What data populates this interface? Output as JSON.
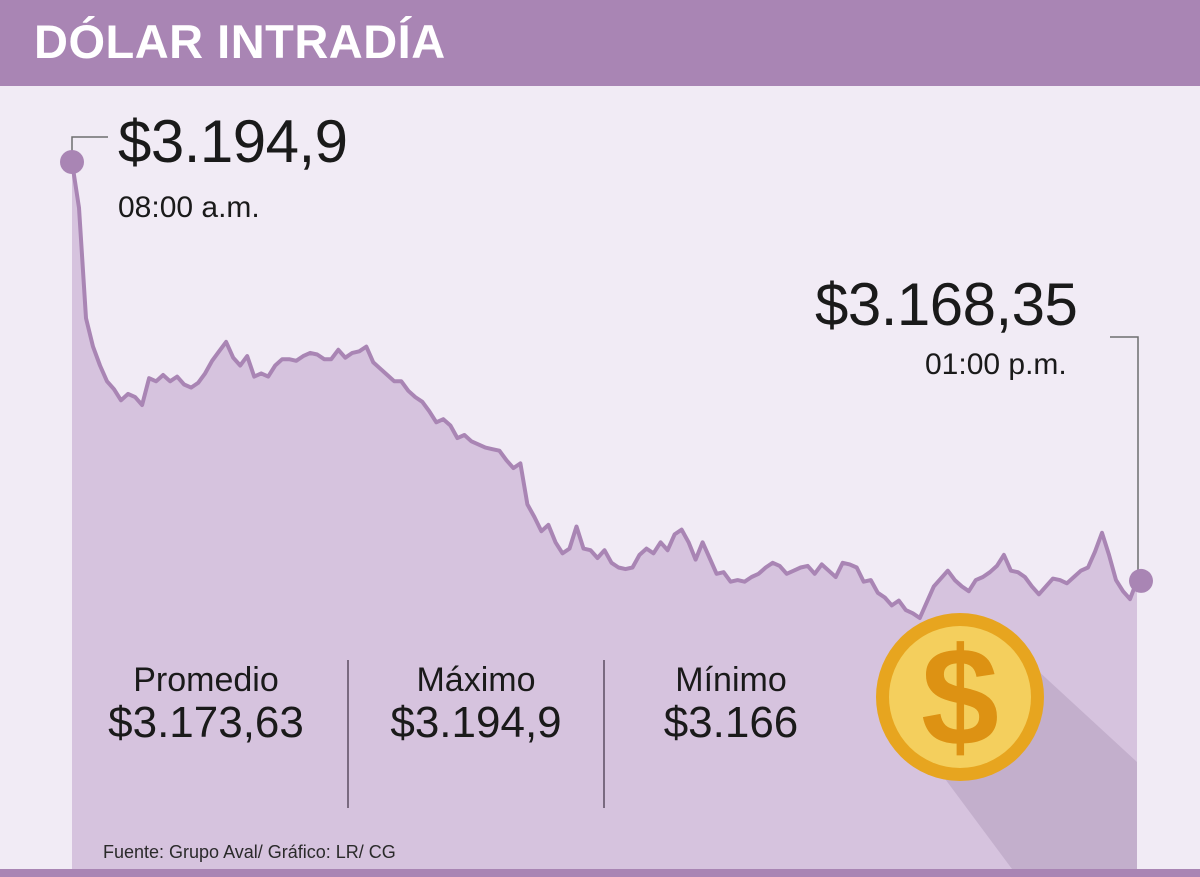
{
  "header": {
    "title": "DÓLAR INTRADÍA"
  },
  "colors": {
    "header_bg": "#a985b4",
    "background": "#f1ebf5",
    "area_fill": "#d6c3de",
    "line": "#a985b4",
    "coin": "#e7a51f"
  },
  "open_label": {
    "value": "$3.194,9",
    "time": "08:00 a.m."
  },
  "close_label": {
    "value": "$3.168,35",
    "time": "01:00 p.m."
  },
  "stats": [
    {
      "label": "Promedio",
      "value": "$3.173,63"
    },
    {
      "label": "Máximo",
      "value": "$3.194,9"
    },
    {
      "label": "Mínimo",
      "value": "$3.166"
    }
  ],
  "source": "Fuente: Grupo Aval/ Gráfico: LR/ CG",
  "icon": "dollar-coin-icon",
  "chart_data": {
    "type": "area",
    "title": "DÓLAR INTRADÍA",
    "xlabel": "",
    "ylabel": "",
    "x_range": [
      "08:00 a.m.",
      "01:00 p.m."
    ],
    "grid": false,
    "legend": "none",
    "series": [
      {
        "values": [
          3194.9,
          3192.0,
          3185.0,
          3183.2,
          3182.0,
          3181.0,
          3180.5,
          3179.8,
          3180.2,
          3180.0,
          3179.5,
          3181.2,
          3181.0,
          3181.4,
          3181.0,
          3181.3,
          3180.8,
          3180.6,
          3180.9,
          3181.5,
          3182.3,
          3182.9,
          3183.5,
          3182.5,
          3182.0,
          3182.6,
          3181.3,
          3181.5,
          3181.3,
          3182.0,
          3182.4,
          3182.4,
          3182.3,
          3182.6,
          3182.8,
          3182.7,
          3182.4,
          3182.4,
          3183.0,
          3182.5,
          3182.8,
          3182.9,
          3183.2,
          3182.2,
          3181.8,
          3181.4,
          3181.0,
          3181.0,
          3180.4,
          3180.0,
          3179.7,
          3179.1,
          3178.4,
          3178.6,
          3178.2,
          3177.4,
          3177.6,
          3177.2,
          3177.0,
          3176.8,
          3176.7,
          3176.6,
          3176.0,
          3175.5,
          3175.8,
          3173.2,
          3172.4,
          3171.5,
          3171.9,
          3170.8,
          3170.1,
          3170.4,
          3171.8,
          3170.4,
          3170.3,
          3169.8,
          3170.3,
          3169.5,
          3169.2,
          3169.1,
          3169.2,
          3170.0,
          3170.4,
          3170.1,
          3170.8,
          3170.3,
          3171.3,
          3171.6,
          3170.8,
          3169.7,
          3170.8,
          3169.8,
          3168.8,
          3168.9,
          3168.3,
          3168.4,
          3168.3,
          3168.6,
          3168.8,
          3169.2,
          3169.5,
          3169.3,
          3168.8,
          3169.0,
          3169.2,
          3169.3,
          3168.8,
          3169.4,
          3169.0,
          3168.6,
          3169.5,
          3169.4,
          3169.2,
          3168.3,
          3168.4,
          3167.6,
          3167.3,
          3166.8,
          3167.1,
          3166.5,
          3166.3,
          3166.0,
          3167.0,
          3168.0,
          3168.5,
          3169.0,
          3168.4,
          3168.0,
          3167.7,
          3168.4,
          3168.6,
          3168.9,
          3169.3,
          3170.0,
          3169.0,
          3168.9,
          3168.6,
          3168.0,
          3167.5,
          3168.0,
          3168.5,
          3168.4,
          3168.2,
          3168.6,
          3169.0,
          3169.2,
          3170.2,
          3171.4,
          3170.0,
          3168.4,
          3167.7,
          3167.2,
          3168.35
        ]
      }
    ],
    "summary": {
      "average": 3173.63,
      "max": 3194.9,
      "min": 3166.0,
      "open": 3194.9,
      "close": 3168.35
    }
  }
}
